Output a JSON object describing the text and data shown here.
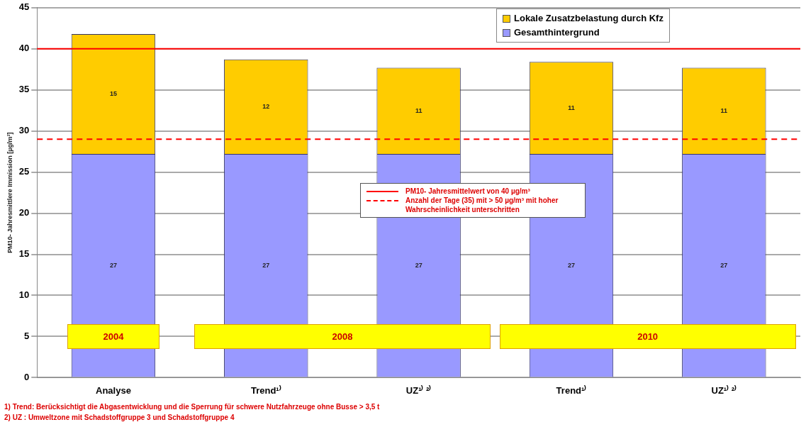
{
  "chart_data": {
    "type": "bar",
    "stacked": true,
    "ylabel": "PM10- Jahresmittlere Immission [µg/m³]",
    "categories": [
      "Analyse",
      "Trend¹⁾",
      "UZ¹⁾ ²⁾",
      "Trend¹⁾",
      "UZ¹⁾ ²⁾"
    ],
    "series": [
      {
        "name": "Gesamthintergrund",
        "color": "#9999ff",
        "values": [
          27.2,
          27.2,
          27.2,
          27.2,
          27.2
        ],
        "value_labels": [
          "27",
          "27",
          "27",
          "27",
          "27"
        ]
      },
      {
        "name": "Lokale Zusatzbelastung durch Kfz",
        "color": "#ffcc00",
        "values": [
          14.6,
          11.5,
          10.5,
          11.2,
          10.5
        ],
        "value_labels": [
          "15",
          "12",
          "11",
          "11",
          "11"
        ]
      }
    ],
    "ylim": [
      0,
      45
    ],
    "yticks": [
      0,
      5,
      10,
      15,
      20,
      25,
      30,
      35,
      40,
      45
    ],
    "grid": "y",
    "legend": "top right",
    "ref_lines": [
      {
        "axis": "y",
        "value": 40,
        "label": "PM10- Jahresmittelwert von 40 µg/m³",
        "color": "#ff0000",
        "line_style": "solid"
      },
      {
        "axis": "y",
        "value": 29,
        "label": "Anzahl der Tage (35) mit > 50 µg/m³ mit hoher Wahrscheinlichkeit unterschritten",
        "color": "#ff0000",
        "line_style": "dashed"
      }
    ],
    "annotations": [
      "2004",
      "2008",
      "2010",
      "1) Trend: Berücksichtigt die Abgasentwicklung und die Sperrung für schwere Nutzfahrzeuge ohne Busse > 3,5 t",
      "2) UZ : Umweltzone mit Schadstoffgruppe 3 und Schadstoffgruppe 4"
    ]
  }
}
